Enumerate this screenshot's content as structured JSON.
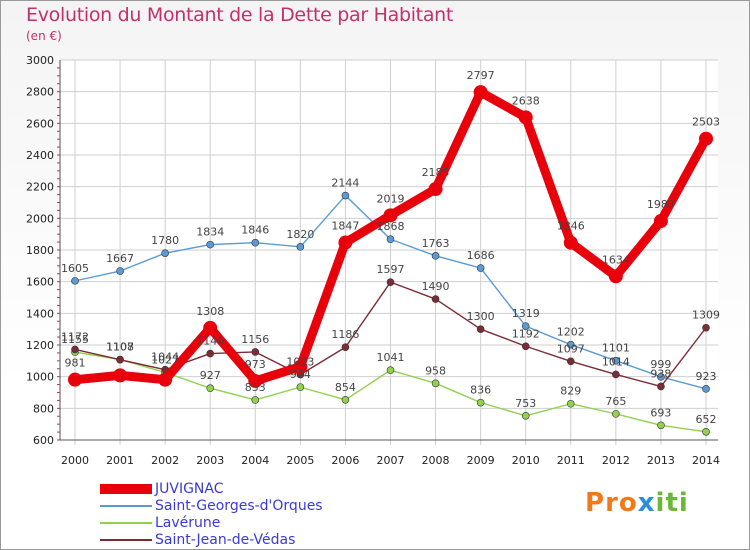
{
  "title": "Evolution du Montant de la Dette par Habitant",
  "subtitle": "(en €)",
  "logo": {
    "text": "Proxiti",
    "letters": [
      "P",
      "r",
      "o",
      "x",
      "i",
      "t",
      "i"
    ],
    "colors": [
      "#f07a1a",
      "#f07a1a",
      "#f07a1a",
      "#2a8fd8",
      "#6bb838",
      "#6bb838",
      "#6bb838"
    ]
  },
  "chart_data": {
    "type": "line",
    "title": "Evolution du Montant de la Dette par Habitant",
    "ylabel": "(en €)",
    "xlabel": "",
    "x": [
      2000,
      2001,
      2002,
      2003,
      2004,
      2005,
      2006,
      2007,
      2008,
      2009,
      2010,
      2011,
      2012,
      2013,
      2014
    ],
    "ylim": [
      600,
      3000
    ],
    "yticks": [
      600,
      800,
      1000,
      1200,
      1400,
      1600,
      1800,
      2000,
      2200,
      2400,
      2600,
      2800,
      3000
    ],
    "grid": true,
    "legend_position": "bottom-left",
    "series": [
      {
        "name": "JUVIGNAC",
        "color": "#e8000b",
        "emphasis": true,
        "values": [
          981,
          1008,
          981,
          1308,
          973,
          1063,
          1847,
          2019,
          2185,
          2797,
          2638,
          1846,
          1634,
          1983,
          2503
        ],
        "labels": [
          "981",
          "",
          "",
          "1308",
          "973",
          "",
          "1847",
          "2019",
          "2185",
          "2797",
          "2638",
          "1846",
          "1634",
          "1983",
          "2503"
        ]
      },
      {
        "name": "Saint-Georges-d'Orques",
        "color": "#5b9bd5",
        "values": [
          1605,
          1667,
          1780,
          1834,
          1846,
          1820,
          2144,
          1868,
          1763,
          1686,
          1319,
          1202,
          1101,
          999,
          923
        ],
        "labels": [
          "1605",
          "1667",
          "1780",
          "1834",
          "1846",
          "1820",
          "2144",
          "1868",
          "1763",
          "1686",
          "1319",
          "1202",
          "1101",
          "999",
          "923"
        ]
      },
      {
        "name": "Lavérune",
        "color": "#92d050",
        "values": [
          1155,
          1108,
          1027,
          927,
          853,
          934,
          854,
          1041,
          958,
          836,
          753,
          829,
          765,
          693,
          652
        ],
        "labels": [
          "1155",
          "1108",
          "1027",
          "927",
          "853",
          "934",
          "854",
          "1041",
          "958",
          "836",
          "753",
          "829",
          "765",
          "693",
          "652"
        ]
      },
      {
        "name": "Saint-Jean-de-Védas",
        "color": "#7b2c35",
        "values": [
          1172,
          1107,
          1044,
          1146,
          1156,
          1013,
          1186,
          1597,
          1490,
          1300,
          1192,
          1097,
          1014,
          938,
          1309
        ],
        "labels": [
          "1172",
          "1107",
          "1044",
          "1146",
          "1156",
          "1013",
          "1186",
          "1597",
          "1490",
          "1300",
          "1192",
          "1097",
          "1014",
          "938",
          "1309"
        ]
      }
    ]
  }
}
